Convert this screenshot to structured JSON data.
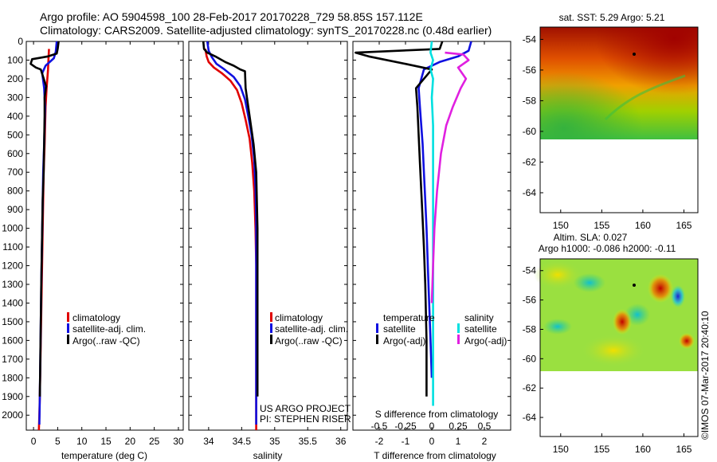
{
  "title": {
    "line1": "Argo profile: AO 5904598_100 28-Feb-2017 20170228_729 58.85S 157.112E",
    "line2": "Climatology: CARS2009. Satellite-adjusted climatology: synTS_20170228.nc (0.48d earlier)"
  },
  "colors": {
    "climatology": "#e00000",
    "satellite": "#1010e0",
    "argo": "#000000",
    "sat_salinity": "#00e0e0",
    "argo_salinity": "#e020e0"
  },
  "chart_data": [
    {
      "type": "line",
      "id": "temperature",
      "xlabel": "temperature (deg C)",
      "ylim": [
        0,
        2080
      ],
      "xlim": [
        -1.5,
        31
      ],
      "xticks": [
        0,
        5,
        10,
        15,
        20,
        25,
        30
      ],
      "yticks": [
        0,
        100,
        200,
        300,
        400,
        500,
        600,
        700,
        800,
        900,
        1000,
        1100,
        1200,
        1300,
        1400,
        1500,
        1600,
        1700,
        1800,
        1900,
        2000
      ],
      "legend": [
        "climatology",
        "satellite-adj. clim.",
        "Argo(..raw -QC)"
      ],
      "series": [
        {
          "name": "climatology",
          "color": "#e00000",
          "x": [
            3.2,
            3.1,
            3.0,
            2.7,
            2.5,
            2.4,
            2.3,
            2.1,
            2.0,
            1.9,
            1.8,
            1.7,
            1.6,
            1.5,
            1.4,
            1.3,
            1.2,
            1.1
          ],
          "y": [
            40,
            90,
            150,
            250,
            350,
            450,
            550,
            700,
            850,
            1000,
            1150,
            1300,
            1450,
            1600,
            1750,
            1900,
            2000,
            2080
          ]
        },
        {
          "name": "satellite-adj. clim.",
          "color": "#1010e0",
          "x": [
            4.8,
            4.6,
            4.2,
            2.5,
            1.8,
            2.2,
            2.4,
            2.3,
            2.2,
            2.0,
            1.9,
            1.8,
            1.7,
            1.6,
            1.5,
            1.4,
            1.3,
            1.2
          ],
          "y": [
            0,
            55,
            90,
            130,
            170,
            250,
            350,
            450,
            550,
            700,
            850,
            1000,
            1150,
            1300,
            1500,
            1700,
            1900,
            2050
          ]
        },
        {
          "name": "Argo(..raw -QC)",
          "color": "#000000",
          "x": [
            5.2,
            5.0,
            4.8,
            3.0,
            -0.3,
            -0.6,
            0.5,
            1.5,
            2.6,
            2.3,
            2.3,
            2.2,
            2.1,
            1.9,
            1.8,
            1.7,
            1.6,
            1.5,
            1.4,
            1.3
          ],
          "y": [
            0,
            40,
            65,
            80,
            95,
            120,
            140,
            150,
            240,
            300,
            400,
            550,
            700,
            850,
            1000,
            1150,
            1300,
            1500,
            1700,
            1900
          ]
        }
      ]
    },
    {
      "type": "line",
      "id": "salinity",
      "xlabel": "salinity",
      "ylim": [
        0,
        2080
      ],
      "xlim": [
        33.7,
        36.1
      ],
      "xticks": [
        34,
        34.5,
        35,
        35.5,
        36
      ],
      "legend": [
        "climatology",
        "satellite-adj. clim.",
        "Argo(..raw -QC)"
      ],
      "annotation": [
        "US ARGO PROJECT",
        "PI: STEPHEN RISER"
      ],
      "series": [
        {
          "name": "climatology",
          "color": "#e00000",
          "x": [
            33.95,
            33.97,
            34.0,
            34.08,
            34.2,
            34.33,
            34.43,
            34.5,
            34.56,
            34.62,
            34.66,
            34.69,
            34.71,
            34.72,
            34.72,
            34.72,
            34.72
          ],
          "y": [
            40,
            80,
            110,
            140,
            170,
            210,
            260,
            330,
            420,
            520,
            650,
            800,
            1000,
            1200,
            1500,
            1800,
            2080
          ]
        },
        {
          "name": "satellite-adj. clim.",
          "color": "#1010e0",
          "x": [
            33.98,
            34.0,
            34.05,
            34.12,
            34.24,
            34.38,
            34.48,
            34.55,
            34.6,
            34.65,
            34.69,
            34.71,
            34.72,
            34.72,
            34.72,
            34.72,
            34.72
          ],
          "y": [
            0,
            50,
            85,
            120,
            150,
            190,
            240,
            310,
            400,
            500,
            630,
            780,
            950,
            1200,
            1500,
            1800,
            2050
          ]
        },
        {
          "name": "Argo(..raw -QC)",
          "color": "#000000",
          "x": [
            33.92,
            33.93,
            33.98,
            34.1,
            34.25,
            34.38,
            34.48,
            34.55,
            34.56,
            34.62,
            34.68,
            34.72,
            34.73,
            34.74,
            34.74,
            34.74,
            34.74
          ],
          "y": [
            0,
            40,
            60,
            80,
            110,
            130,
            150,
            160,
            250,
            400,
            550,
            700,
            850,
            1000,
            1300,
            1600,
            1900
          ]
        }
      ]
    },
    {
      "type": "line",
      "id": "differences",
      "xlabel": "T difference from climatology",
      "xlabel_top": "S difference from climatology",
      "ylim": [
        0,
        2080
      ],
      "xlim": [
        -3,
        3
      ],
      "xticks": [
        -2,
        -1,
        0,
        1,
        2
      ],
      "xticks_top": [
        "-0.5",
        "-0.25",
        "0",
        "0.25",
        "0.5"
      ],
      "legend_headers": [
        "temperature",
        "salinity"
      ],
      "legend": [
        "satellite",
        "Argo(-adj)",
        "satellite",
        "Argo(-adj)"
      ],
      "series": [
        {
          "name": "satellite",
          "color": "#1010e0",
          "x": [
            1.5,
            1.4,
            1.0,
            0.3,
            -0.3,
            -0.5,
            -0.45,
            -0.4,
            -0.35,
            -0.3,
            -0.25,
            -0.2,
            -0.15,
            -0.1,
            -0.05,
            0.0
          ],
          "y": [
            0,
            50,
            80,
            110,
            150,
            250,
            350,
            450,
            550,
            700,
            850,
            1000,
            1200,
            1400,
            1600,
            1800
          ]
        },
        {
          "name": "Argo(-adj)",
          "color": "#000000",
          "x": [
            0.4,
            0.3,
            -2.9,
            -2.4,
            -1.0,
            0.0,
            -0.6,
            -0.55,
            -0.5,
            -0.45,
            -0.4,
            -0.35,
            -0.3,
            -0.25,
            -0.2,
            -0.2
          ],
          "y": [
            0,
            40,
            60,
            80,
            120,
            150,
            250,
            350,
            500,
            650,
            800,
            950,
            1100,
            1300,
            1600,
            1900
          ]
        },
        {
          "name": "satellite",
          "color": "#00e0e0",
          "x": [
            0.0,
            -0.05,
            0.05,
            -0.05,
            0.05,
            0.0,
            0.05,
            0.05,
            0.05,
            0.05,
            0.05,
            0.05,
            0.05
          ],
          "y": [
            0,
            60,
            100,
            150,
            200,
            300,
            450,
            600,
            800,
            1000,
            1300,
            1600,
            1950
          ]
        },
        {
          "name": "Argo(-adj)",
          "color": "#e020e0",
          "x": [
            0.5,
            1.2,
            1.4,
            1.0,
            1.3,
            1.1,
            0.8,
            0.55,
            0.35,
            0.2,
            0.1,
            0.05,
            0.0
          ],
          "y": [
            60,
            70,
            100,
            140,
            200,
            250,
            350,
            450,
            600,
            800,
            1000,
            1200,
            1400
          ]
        }
      ]
    },
    {
      "type": "heatmap",
      "id": "sst-map",
      "title": "sat. SST: 5.29 Argo: 5.21",
      "xticks": [
        150,
        155,
        160,
        165
      ],
      "yticks": [
        -54,
        -56,
        -58,
        -60,
        -62,
        -64
      ],
      "xlim": [
        147.5,
        166.7
      ],
      "ylim": [
        -65.3,
        -53.2
      ]
    },
    {
      "type": "heatmap",
      "id": "sla-map",
      "title": [
        "Altim. SLA: 0.027",
        "Argo h1000: -0.086 h2000: -0.11"
      ],
      "xticks": [
        150,
        155,
        160,
        165
      ],
      "yticks": [
        -54,
        -56,
        -58,
        -60,
        -62,
        -64
      ],
      "xlim": [
        147.5,
        166.7
      ],
      "ylim": [
        -65.3,
        -53.2
      ]
    }
  ],
  "credit": "©IMOS 07-Mar-2017 20:40:10"
}
